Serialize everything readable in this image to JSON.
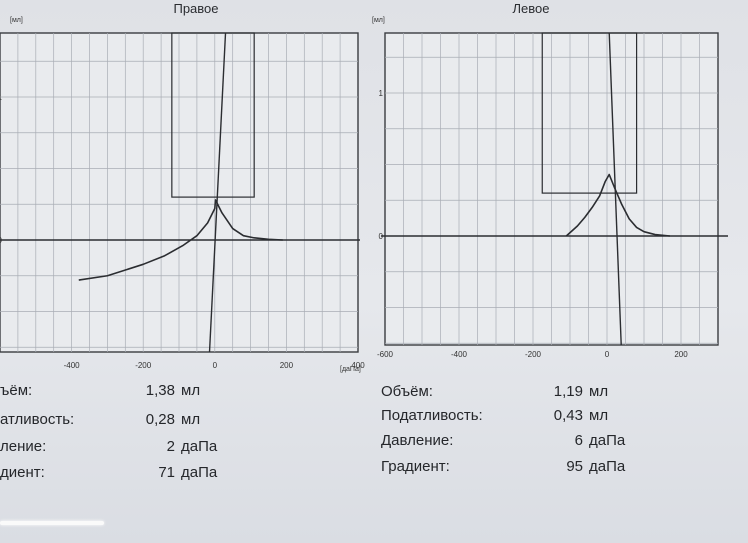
{
  "chart_data": [
    {
      "type": "line",
      "title": "Правое",
      "ylabel": "[мл]",
      "xlabel": "[даПа]",
      "corner_mark": "✕",
      "x_ticks": [
        "-400",
        "-200",
        "0",
        "200",
        "400"
      ],
      "y_ticks": [
        "1",
        "0"
      ],
      "xlim": [
        -600,
        400
      ],
      "ylim": [
        -0.8,
        1.45
      ],
      "box": {
        "x": [
          -120,
          110
        ],
        "y": [
          0.3,
          1.45
        ]
      },
      "peak": {
        "x": 2,
        "y": 0.28
      },
      "series": [
        {
          "x": [
            -380,
            -300,
            -200,
            -140,
            -90,
            -50,
            -20,
            0,
            2,
            20,
            50,
            80,
            110,
            150,
            190
          ],
          "y": [
            -0.28,
            -0.25,
            -0.17,
            -0.11,
            -0.04,
            0.03,
            0.12,
            0.22,
            0.28,
            0.19,
            0.08,
            0.03,
            0.015,
            0.005,
            0.0
          ]
        }
      ]
    },
    {
      "type": "line",
      "title": "Левое",
      "ylabel": "[мл]",
      "xlabel": "",
      "corner_mark": "✓",
      "x_ticks": [
        "-600",
        "-400",
        "-200",
        "0",
        "200"
      ],
      "y_ticks": [
        "1",
        "0"
      ],
      "xlim": [
        -600,
        300
      ],
      "ylim": [
        -0.8,
        1.45
      ],
      "box": {
        "x": [
          -175,
          80
        ],
        "y": [
          0.3,
          1.45
        ]
      },
      "peak": {
        "x": 6,
        "y": 0.43
      },
      "series": [
        {
          "x": [
            -110,
            -80,
            -60,
            -40,
            -20,
            -5,
            6,
            20,
            40,
            60,
            80,
            100,
            130,
            170
          ],
          "y": [
            0.0,
            0.07,
            0.13,
            0.2,
            0.28,
            0.38,
            0.43,
            0.34,
            0.22,
            0.12,
            0.06,
            0.03,
            0.01,
            0.0
          ]
        }
      ]
    }
  ],
  "results": {
    "right": [
      {
        "label": "ъём:",
        "value": "1,38",
        "unit": "мл"
      },
      {
        "label": "атливость:",
        "value": "0,28",
        "unit": "мл"
      },
      {
        "label": "ление:",
        "value": "2",
        "unit": "даПа"
      },
      {
        "label": "диент:",
        "value": "71",
        "unit": "даПа"
      }
    ],
    "left": [
      {
        "label": "Объём:",
        "value": "1,19",
        "unit": "мл"
      },
      {
        "label": "Податливость:",
        "value": "0,43",
        "unit": "мл"
      },
      {
        "label": "Давление:",
        "value": "6",
        "unit": "даПа"
      },
      {
        "label": "Градиент:",
        "value": "95",
        "unit": "даПа"
      }
    ]
  },
  "colors": {
    "line": "#2b2d31",
    "grid": "#a9adb5",
    "frame": "#3a3c40"
  }
}
